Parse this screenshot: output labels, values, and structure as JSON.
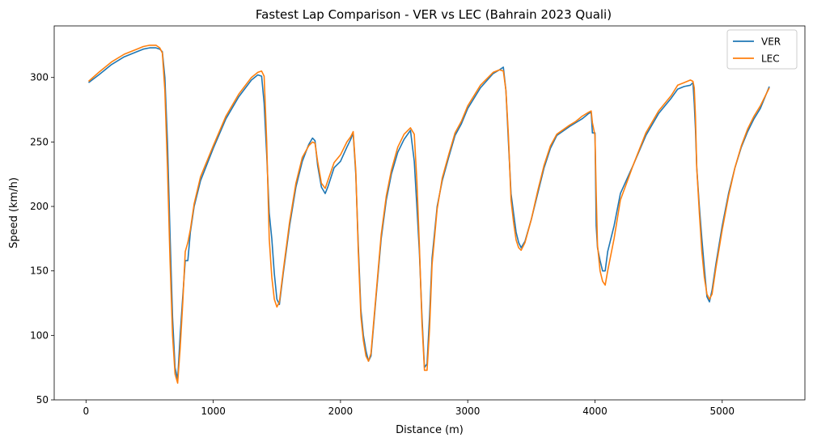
{
  "chart_data": {
    "type": "line",
    "title": "Fastest Lap Comparison - VER vs LEC (Bahrain 2023 Quali)",
    "xlabel": "Distance (m)",
    "ylabel": "Speed (km/h)",
    "xlim": [
      -250,
      5650
    ],
    "ylim": [
      50,
      340
    ],
    "xticks": [
      0,
      1000,
      2000,
      3000,
      4000,
      5000
    ],
    "yticks": [
      50,
      100,
      150,
      200,
      250,
      300
    ],
    "grid": false,
    "legend_position": "top-right",
    "colors": {
      "VER": "#1f77b4",
      "LEC": "#ff7f0e"
    },
    "series": [
      {
        "name": "VER",
        "color": "#1f77b4",
        "x": [
          20,
          100,
          200,
          300,
          400,
          450,
          500,
          550,
          580,
          600,
          620,
          640,
          660,
          680,
          700,
          720,
          740,
          760,
          780,
          800,
          820,
          850,
          900,
          1000,
          1100,
          1200,
          1300,
          1350,
          1380,
          1400,
          1420,
          1440,
          1460,
          1480,
          1500,
          1520,
          1550,
          1600,
          1650,
          1700,
          1750,
          1780,
          1800,
          1820,
          1850,
          1880,
          1900,
          1950,
          2000,
          2050,
          2080,
          2100,
          2120,
          2140,
          2160,
          2180,
          2200,
          2220,
          2240,
          2280,
          2320,
          2360,
          2400,
          2450,
          2500,
          2550,
          2580,
          2600,
          2620,
          2640,
          2660,
          2680,
          2700,
          2720,
          2760,
          2800,
          2850,
          2900,
          2950,
          3000,
          3100,
          3200,
          3250,
          3280,
          3300,
          3320,
          3340,
          3360,
          3380,
          3400,
          3420,
          3450,
          3500,
          3550,
          3600,
          3650,
          3700,
          3800,
          3850,
          3900,
          3950,
          3970,
          3980,
          4000,
          4010,
          4020,
          4040,
          4060,
          4080,
          4100,
          4150,
          4200,
          4300,
          4400,
          4500,
          4600,
          4650,
          4700,
          4750,
          4770,
          4780,
          4790,
          4800,
          4820,
          4840,
          4860,
          4880,
          4900,
          4920,
          4950,
          5000,
          5050,
          5100,
          5150,
          5200,
          5250,
          5300,
          5370
        ],
        "y": [
          296,
          302,
          310,
          316,
          320,
          322,
          323,
          323,
          322,
          320,
          300,
          250,
          180,
          114,
          75,
          66,
          100,
          130,
          158,
          158,
          180,
          200,
          220,
          245,
          268,
          285,
          298,
          302,
          301,
          280,
          240,
          195,
          175,
          148,
          128,
          124,
          148,
          185,
          215,
          235,
          248,
          253,
          251,
          232,
          215,
          210,
          215,
          230,
          235,
          246,
          252,
          257,
          225,
          170,
          120,
          100,
          88,
          80,
          84,
          130,
          175,
          205,
          225,
          242,
          252,
          259,
          235,
          200,
          165,
          115,
          75,
          78,
          115,
          160,
          200,
          220,
          238,
          255,
          264,
          276,
          292,
          303,
          306,
          308,
          290,
          250,
          210,
          195,
          180,
          172,
          168,
          173,
          190,
          210,
          230,
          245,
          255,
          262,
          265,
          268,
          272,
          273,
          257,
          257,
          185,
          168,
          158,
          150,
          150,
          165,
          185,
          210,
          232,
          255,
          272,
          284,
          291,
          293,
          294,
          296,
          280,
          260,
          230,
          200,
          175,
          152,
          130,
          126,
          135,
          155,
          185,
          210,
          230,
          246,
          258,
          268,
          276,
          293
        ]
      },
      {
        "name": "LEC",
        "color": "#ff7f0e",
        "x": [
          20,
          100,
          200,
          300,
          400,
          450,
          500,
          550,
          580,
          600,
          620,
          640,
          660,
          680,
          700,
          720,
          740,
          760,
          780,
          800,
          820,
          850,
          900,
          1000,
          1100,
          1200,
          1300,
          1350,
          1380,
          1400,
          1420,
          1440,
          1460,
          1480,
          1500,
          1520,
          1550,
          1600,
          1650,
          1700,
          1750,
          1780,
          1800,
          1820,
          1850,
          1880,
          1900,
          1950,
          2000,
          2050,
          2080,
          2100,
          2120,
          2140,
          2160,
          2180,
          2200,
          2220,
          2240,
          2280,
          2320,
          2360,
          2400,
          2450,
          2500,
          2550,
          2580,
          2600,
          2620,
          2640,
          2660,
          2680,
          2700,
          2720,
          2760,
          2800,
          2850,
          2900,
          2950,
          3000,
          3100,
          3200,
          3250,
          3280,
          3300,
          3320,
          3340,
          3360,
          3380,
          3400,
          3420,
          3450,
          3500,
          3550,
          3600,
          3650,
          3700,
          3800,
          3850,
          3900,
          3950,
          3970,
          3980,
          4000,
          4010,
          4020,
          4040,
          4060,
          4080,
          4100,
          4150,
          4200,
          4300,
          4400,
          4500,
          4600,
          4650,
          4700,
          4750,
          4770,
          4780,
          4790,
          4800,
          4820,
          4840,
          4860,
          4880,
          4900,
          4920,
          4950,
          5000,
          5050,
          5100,
          5150,
          5200,
          5250,
          5300,
          5370
        ],
        "y": [
          297,
          304,
          312,
          318,
          322,
          324,
          325,
          325,
          323,
          319,
          290,
          230,
          160,
          100,
          70,
          63,
          90,
          125,
          165,
          172,
          182,
          202,
          223,
          247,
          270,
          287,
          300,
          304,
          305,
          301,
          250,
          175,
          145,
          128,
          122,
          126,
          150,
          188,
          218,
          238,
          247,
          250,
          249,
          235,
          218,
          214,
          220,
          234,
          240,
          250,
          254,
          258,
          228,
          165,
          115,
          96,
          84,
          80,
          86,
          132,
          178,
          208,
          228,
          246,
          256,
          261,
          256,
          220,
          170,
          110,
          73,
          73,
          105,
          155,
          198,
          222,
          240,
          257,
          266,
          278,
          294,
          304,
          306,
          305,
          290,
          255,
          205,
          188,
          174,
          168,
          166,
          172,
          190,
          212,
          232,
          247,
          256,
          263,
          266,
          270,
          273,
          274,
          265,
          255,
          210,
          170,
          150,
          142,
          139,
          150,
          175,
          205,
          232,
          257,
          274,
          286,
          294,
          296,
          298,
          297,
          292,
          270,
          230,
          195,
          165,
          145,
          132,
          128,
          132,
          152,
          182,
          208,
          230,
          247,
          260,
          270,
          278,
          292
        ]
      }
    ]
  }
}
